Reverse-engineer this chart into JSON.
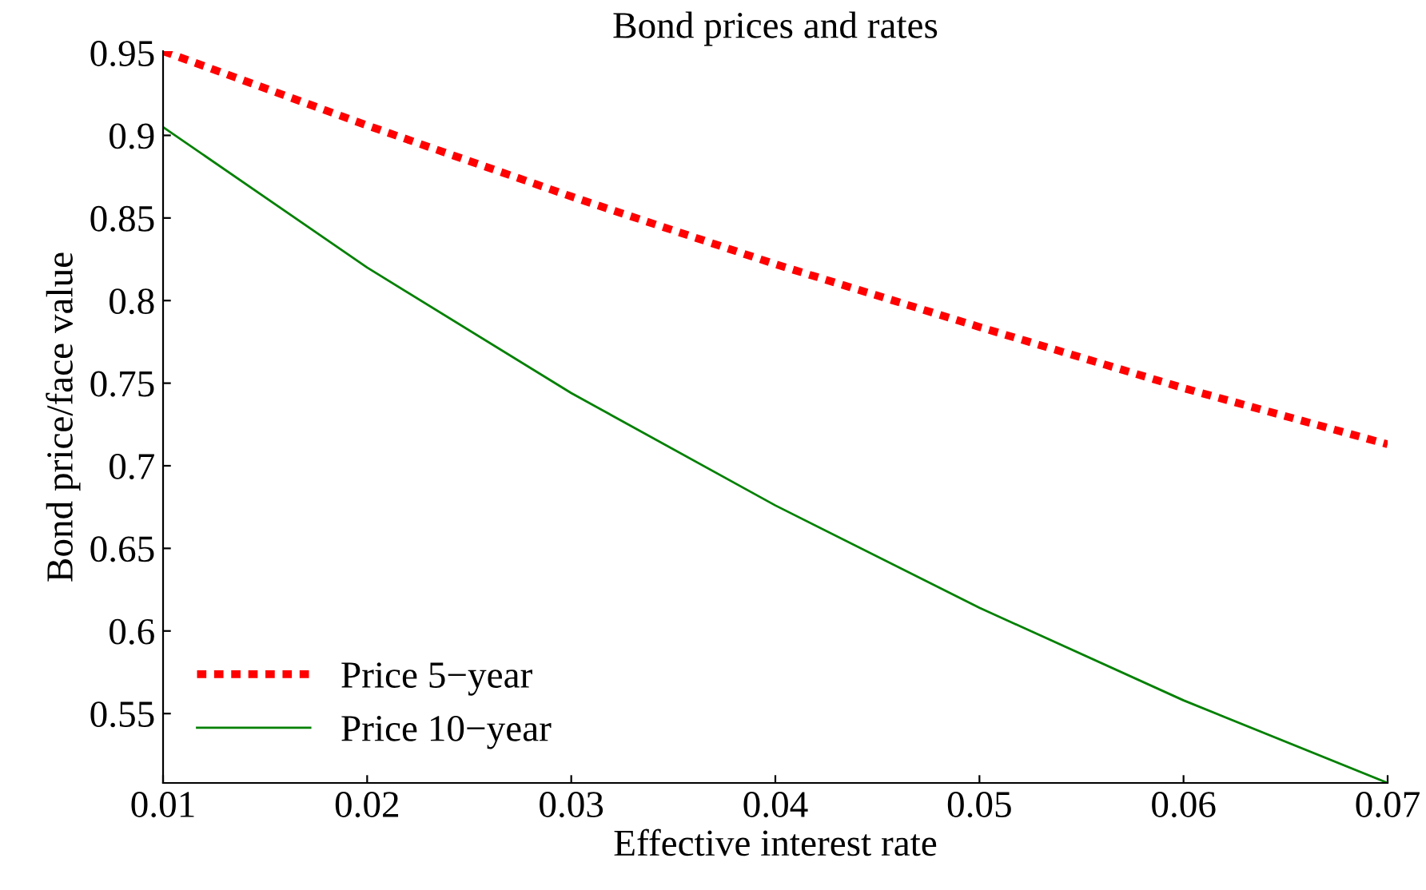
{
  "chart_data": {
    "type": "line",
    "title": "Bond prices and rates",
    "xlabel": "Effective interest rate",
    "ylabel": "Bond price/face value",
    "x": [
      0.01,
      0.02,
      0.03,
      0.04,
      0.05,
      0.06,
      0.07
    ],
    "series": [
      {
        "name": "Price 5−year",
        "color": "#ff0000",
        "line_style": "dotted",
        "values": [
          0.951,
          0.906,
          0.863,
          0.822,
          0.784,
          0.747,
          0.713
        ]
      },
      {
        "name": "Price 10−year",
        "color": "#008000",
        "line_style": "solid",
        "values": [
          0.905,
          0.82,
          0.744,
          0.676,
          0.614,
          0.558,
          0.508
        ]
      }
    ],
    "xlim": [
      0.01,
      0.07
    ],
    "ylim": [
      0.508,
      0.951
    ],
    "xticks": [
      0.01,
      0.02,
      0.03,
      0.04,
      0.05,
      0.06,
      0.07
    ],
    "yticks": [
      0.55,
      0.6,
      0.65,
      0.7,
      0.75,
      0.8,
      0.85,
      0.9,
      0.95
    ],
    "grid": false,
    "legend": "bottom left"
  }
}
